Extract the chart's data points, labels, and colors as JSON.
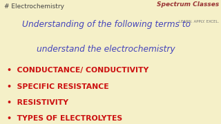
{
  "background_color": "#f5f0c8",
  "hashtag_text": "# Electrochemistry",
  "hashtag_color": "#444444",
  "hashtag_fontsize": 6.5,
  "logo_text": "Spectrum Classes",
  "logo_sub": "LEARN. APPLY. EXCEL.",
  "logo_color": "#993333",
  "logo_fontsize": 6.5,
  "logo_sub_fontsize": 4.0,
  "title_line1": "Understanding of the following terms to",
  "title_line2": "understand the electrochemistry",
  "title_color": "#4444bb",
  "title_fontsize": 8.8,
  "bullet_items": [
    "CONDUCTANCE/ CONDUCTIVITY",
    "SPECIFIC RESISTANCE",
    "RESISTIVITY",
    "TYPES OF ELECTROLYTES"
  ],
  "bullet_color": "#cc1111",
  "bullet_fontsize": 7.8
}
